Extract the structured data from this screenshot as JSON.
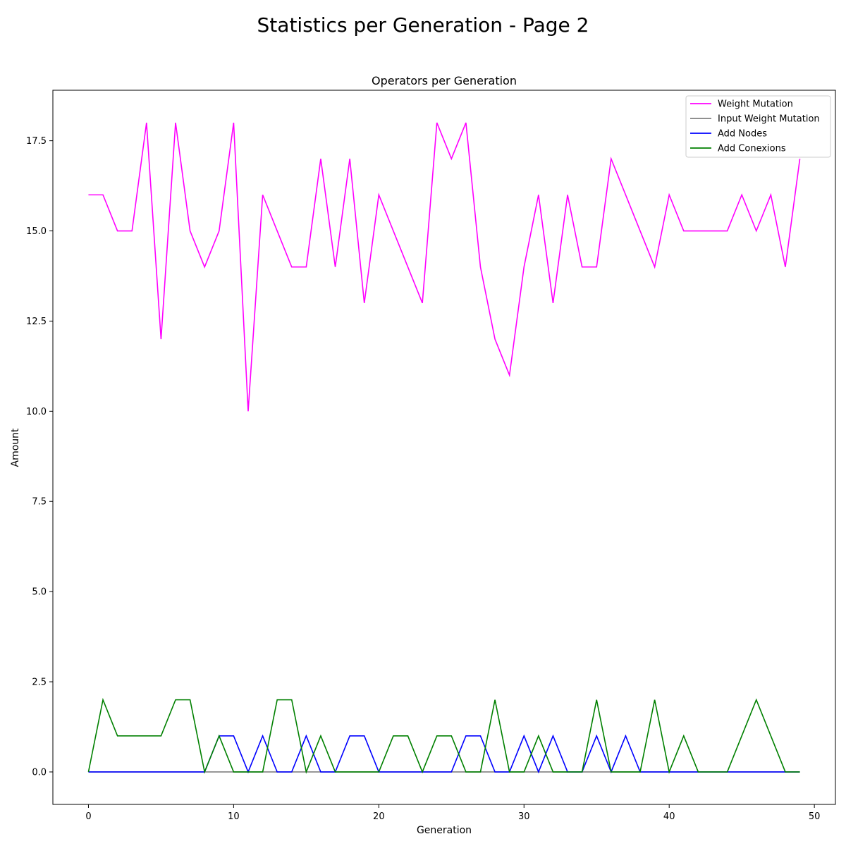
{
  "figure": {
    "suptitle": "Statistics per Generation - Page 2"
  },
  "chart_data": {
    "type": "line",
    "title": "Operators per Generation",
    "xlabel": "Generation",
    "ylabel": "Amount",
    "xlim": [
      -2.45,
      51.45
    ],
    "ylim": [
      -0.9,
      18.9
    ],
    "xticks": [
      0,
      10,
      20,
      30,
      40,
      50
    ],
    "xtick_labels": [
      "0",
      "10",
      "20",
      "30",
      "40",
      "50"
    ],
    "yticks": [
      0,
      2.5,
      5,
      7.5,
      10,
      12.5,
      15,
      17.5
    ],
    "ytick_labels": [
      "0.0",
      "2.5",
      "5.0",
      "7.5",
      "10.0",
      "12.5",
      "15.0",
      "17.5"
    ],
    "grid": false,
    "legend_position": "top-right",
    "x": [
      0,
      1,
      2,
      3,
      4,
      5,
      6,
      7,
      8,
      9,
      10,
      11,
      12,
      13,
      14,
      15,
      16,
      17,
      18,
      19,
      20,
      21,
      22,
      23,
      24,
      25,
      26,
      27,
      28,
      29,
      30,
      31,
      32,
      33,
      34,
      35,
      36,
      37,
      38,
      39,
      40,
      41,
      42,
      43,
      44,
      45,
      46,
      47,
      48,
      49
    ],
    "series": [
      {
        "name": "Weight Mutation",
        "color": "#ff00ff",
        "values": [
          16,
          16,
          15,
          15,
          18,
          12,
          18,
          15,
          14,
          15,
          18,
          10,
          16,
          15,
          14,
          14,
          17,
          14,
          17,
          13,
          16,
          15,
          14,
          13,
          18,
          17,
          18,
          14,
          12,
          11,
          14,
          16,
          13,
          16,
          14,
          14,
          17,
          16,
          15,
          14,
          16,
          15,
          15,
          15,
          15,
          16,
          15,
          16,
          14,
          17
        ]
      },
      {
        "name": "Input Weight Mutation",
        "color": "#808080",
        "values": [
          0,
          0,
          0,
          0,
          0,
          0,
          0,
          0,
          0,
          0,
          0,
          0,
          0,
          0,
          0,
          0,
          0,
          0,
          0,
          0,
          0,
          0,
          0,
          0,
          0,
          0,
          0,
          0,
          0,
          0,
          0,
          0,
          0,
          0,
          0,
          0,
          0,
          0,
          0,
          0,
          0,
          0,
          0,
          0,
          0,
          0,
          0,
          0,
          0,
          0
        ]
      },
      {
        "name": "Add Nodes",
        "color": "#0000ff",
        "values": [
          0,
          0,
          0,
          0,
          0,
          0,
          0,
          0,
          0,
          1,
          1,
          0,
          1,
          0,
          0,
          1,
          0,
          0,
          1,
          1,
          0,
          0,
          0,
          0,
          0,
          0,
          1,
          1,
          0,
          0,
          1,
          0,
          1,
          0,
          0,
          1,
          0,
          1,
          0,
          0,
          0,
          0,
          0,
          0,
          0,
          0,
          0,
          0,
          0,
          0
        ]
      },
      {
        "name": "Add Conexions",
        "color": "#008000",
        "values": [
          0,
          2,
          1,
          1,
          1,
          1,
          2,
          2,
          0,
          1,
          0,
          0,
          0,
          2,
          2,
          0,
          1,
          0,
          0,
          0,
          0,
          1,
          1,
          0,
          1,
          1,
          0,
          0,
          2,
          0,
          0,
          1,
          0,
          0,
          0,
          2,
          0,
          0,
          0,
          2,
          0,
          1,
          0,
          0,
          0,
          1,
          2,
          1,
          0,
          0
        ]
      }
    ]
  }
}
